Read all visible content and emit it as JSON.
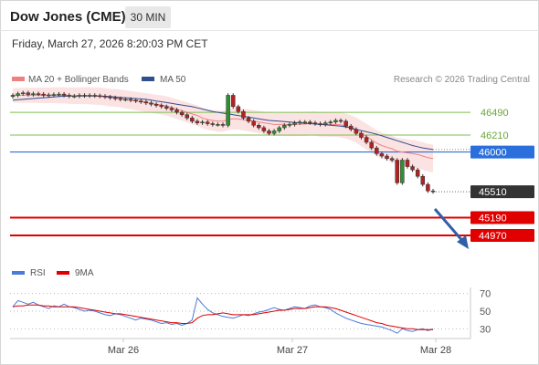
{
  "header": {
    "title": "Dow Jones (CME)",
    "timeframe": "30 MIN",
    "datetime": "Friday, March 27, 2026 8:20:03 PM CET"
  },
  "legend": {
    "ma20_label": "MA 20 + Bollinger Bands",
    "ma50_label": "MA 50",
    "credit": "Research © 2026 Trading Central"
  },
  "colors": {
    "ma20": "#f08080",
    "ma50": "#2f4f8f",
    "bollinger_fill": "#fbd9d9",
    "support_red": "#e00000",
    "pivot_blue": "#2a6fdb",
    "resistance_green": "#7cbf4f",
    "price_label": "#333333",
    "rsi": "#4a7bd8",
    "rsi_ma": "#e00000",
    "arrow": "#2f5fa8"
  },
  "chart_data": [
    {
      "type": "candlestick",
      "name": "price",
      "x_labels": [
        "Mar 26",
        "Mar 27",
        "Mar 28"
      ],
      "ylim": [
        44700,
        46750
      ],
      "levels": [
        {
          "value": 46490,
          "label": "46490",
          "style": "resistance"
        },
        {
          "value": 46210,
          "label": "46210",
          "style": "resistance"
        },
        {
          "value": 46000,
          "label": "46000",
          "style": "pivot"
        },
        {
          "value": 45510,
          "label": "45510",
          "style": "last"
        },
        {
          "value": 45190,
          "label": "45190",
          "style": "support"
        },
        {
          "value": 44970,
          "label": "44970",
          "style": "support"
        }
      ],
      "close": [
        46700,
        46720,
        46730,
        46710,
        46720,
        46715,
        46700,
        46705,
        46710,
        46715,
        46700,
        46690,
        46690,
        46700,
        46695,
        46700,
        46695,
        46690,
        46680,
        46670,
        46660,
        46650,
        46650,
        46640,
        46630,
        46620,
        46605,
        46590,
        46575,
        46560,
        46540,
        46520,
        46490,
        46460,
        46420,
        46380,
        46360,
        46370,
        46350,
        46340,
        46340,
        46330,
        46700,
        46560,
        46500,
        46420,
        46380,
        46330,
        46300,
        46260,
        46230,
        46260,
        46300,
        46330,
        46340,
        46360,
        46370,
        46370,
        46360,
        46350,
        46340,
        46360,
        46370,
        46390,
        46380,
        46320,
        46280,
        46230,
        46180,
        46120,
        46050,
        45980,
        45950,
        45920,
        45900,
        45620,
        45900,
        45820,
        45780,
        45700,
        45600,
        45520,
        45510
      ],
      "ma20": [
        46700,
        46700,
        46700,
        46700,
        46700,
        46700,
        46700,
        46700,
        46700,
        46700,
        46700,
        46695,
        46695,
        46695,
        46695,
        46695,
        46690,
        46690,
        46680,
        46670,
        46670,
        46660,
        46650,
        46640,
        46630,
        46620,
        46610,
        46600,
        46590,
        46580,
        46570,
        46550,
        46530,
        46510,
        46490,
        46470,
        46450,
        46420,
        46400,
        46390,
        46380,
        46380,
        46400,
        46410,
        46410,
        46400,
        46390,
        46380,
        46370,
        46360,
        46350,
        46340,
        46340,
        46340,
        46340,
        46340,
        46345,
        46345,
        46350,
        46350,
        46340,
        46340,
        46340,
        46340,
        46335,
        46320,
        46300,
        46270,
        46230,
        46190,
        46150,
        46110,
        46080,
        46060,
        46040,
        46010,
        46000,
        45990,
        45980,
        45970,
        45950,
        45930,
        45920
      ],
      "ma50": [
        46640,
        46645,
        46650,
        46655,
        46660,
        46665,
        46670,
        46675,
        46680,
        46685,
        46688,
        46690,
        46690,
        46692,
        46692,
        46693,
        46693,
        46690,
        46688,
        46685,
        46680,
        46675,
        46670,
        46665,
        46660,
        46655,
        46650,
        46640,
        46630,
        46620,
        46610,
        46600,
        46590,
        46580,
        46570,
        46560,
        46545,
        46530,
        46515,
        46500,
        46490,
        46480,
        46470,
        46460,
        46450,
        46440,
        46430,
        46420,
        46410,
        46400,
        46390,
        46385,
        46380,
        46375,
        46370,
        46365,
        46360,
        46355,
        46350,
        46345,
        46340,
        46335,
        46330,
        46325,
        46320,
        46310,
        46295,
        46280,
        46265,
        46250,
        46235,
        46220,
        46200,
        46180,
        46160,
        46140,
        46120,
        46100,
        46080,
        46065,
        46050,
        46040,
        46030
      ]
    },
    {
      "type": "line",
      "name": "oscillator",
      "ylim": [
        20,
        80
      ],
      "yticks": [
        30,
        50,
        70
      ],
      "legend": [
        "RSI",
        "9MA"
      ],
      "rsi": [
        55,
        62,
        60,
        58,
        60,
        57,
        55,
        53,
        56,
        55,
        58,
        55,
        54,
        52,
        50,
        51,
        50,
        48,
        46,
        45,
        47,
        46,
        44,
        42,
        40,
        42,
        41,
        40,
        38,
        36,
        37,
        35,
        36,
        34,
        36,
        40,
        65,
        58,
        52,
        48,
        46,
        44,
        43,
        42,
        44,
        46,
        45,
        47,
        49,
        50,
        52,
        54,
        52,
        51,
        53,
        55,
        54,
        53,
        56,
        57,
        55,
        54,
        52,
        48,
        45,
        42,
        40,
        38,
        36,
        35,
        34,
        33,
        32,
        30,
        28,
        25,
        30,
        28,
        27,
        29,
        30,
        28,
        30
      ],
      "ma9": [
        55,
        56,
        56,
        57,
        57,
        57,
        56,
        56,
        55,
        55,
        55,
        55,
        55,
        54,
        53,
        52,
        51,
        50,
        49,
        48,
        47,
        47,
        46,
        45,
        44,
        43,
        42,
        41,
        40,
        39,
        38,
        37,
        37,
        36,
        36,
        37,
        42,
        45,
        46,
        46,
        47,
        48,
        47,
        46,
        46,
        46,
        46,
        46,
        47,
        48,
        49,
        50,
        51,
        51,
        52,
        53,
        53,
        53,
        54,
        55,
        55,
        55,
        54,
        53,
        51,
        49,
        47,
        45,
        43,
        41,
        39,
        37,
        36,
        34,
        33,
        32,
        31,
        30,
        30,
        29,
        29,
        29,
        29
      ]
    }
  ]
}
